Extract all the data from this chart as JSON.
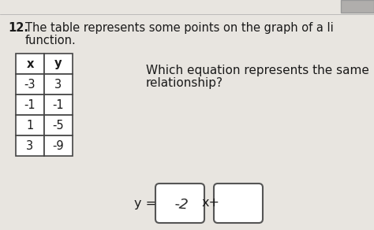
{
  "question_number": "12.",
  "question_line1": "The table represents some points on the graph of a li",
  "question_line2": "function.",
  "table_headers": [
    "x",
    "y"
  ],
  "table_data": [
    [
      -3,
      3
    ],
    [
      -1,
      -1
    ],
    [
      1,
      -5
    ],
    [
      3,
      -9
    ]
  ],
  "right_line1": "Which equation represents the same",
  "right_line2": "relationship?",
  "eq_prefix": "y =",
  "box1_text": "-2",
  "eq_middle": "x+",
  "background_color": "#d8d4d0",
  "paper_color": "#e8e5e0",
  "text_color": "#1a1a1a",
  "table_line_color": "#444444",
  "font_size_main": 10.5,
  "font_size_table": 10.5,
  "corner_box_color": "#b0aeac",
  "corner_box_edge": "#999999"
}
